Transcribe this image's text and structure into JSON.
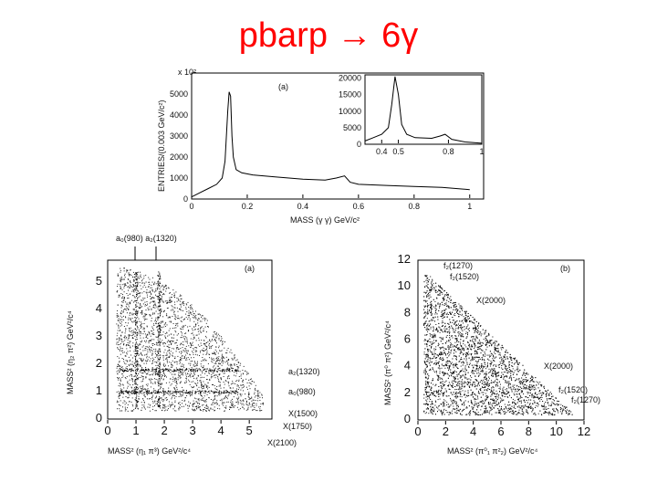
{
  "title": "pbarp → 6γ",
  "chart_data": [
    {
      "type": "line",
      "panel": "(a)",
      "ylabel": "ENTRIES/(0.003 GeV/c²)",
      "xlabel": "MASS (γ γ) GeV/c²",
      "y_multiplier": "x 10²",
      "xlim": [
        0,
        1.05
      ],
      "ylim": [
        0,
        6000
      ],
      "xticks": [
        "0",
        "0.2",
        "0.4",
        "0.6",
        "0.8",
        "1"
      ],
      "yticks": [
        "0",
        "1000",
        "2000",
        "3000",
        "4000",
        "5000"
      ],
      "x": [
        0.0,
        0.03,
        0.06,
        0.09,
        0.11,
        0.12,
        0.13,
        0.135,
        0.14,
        0.145,
        0.15,
        0.16,
        0.18,
        0.22,
        0.3,
        0.4,
        0.48,
        0.52,
        0.55,
        0.57,
        0.6,
        0.7,
        0.8,
        0.9,
        1.0
      ],
      "y": [
        100,
        300,
        500,
        700,
        1000,
        1800,
        4200,
        5100,
        4900,
        3000,
        2000,
        1400,
        1250,
        1150,
        1050,
        950,
        900,
        1000,
        1100,
        800,
        700,
        650,
        600,
        550,
        450
      ]
    },
    {
      "type": "line",
      "panel": "inset",
      "xlim": [
        0.3,
        1.0
      ],
      "ylim": [
        0,
        21000
      ],
      "xticks": [
        "0.4",
        "0.5",
        "0.8",
        "1"
      ],
      "yticks": [
        "0",
        "5000",
        "10000",
        "15000",
        "20000"
      ],
      "x": [
        0.3,
        0.35,
        0.4,
        0.44,
        0.46,
        0.48,
        0.5,
        0.52,
        0.55,
        0.6,
        0.7,
        0.75,
        0.78,
        0.82,
        0.9,
        1.0
      ],
      "y": [
        1000,
        2000,
        3000,
        5000,
        12000,
        20500,
        15000,
        6000,
        3000,
        2000,
        1800,
        2500,
        3000,
        1500,
        700,
        300
      ]
    },
    {
      "type": "scatter",
      "panel": "(a)",
      "xlabel": "MASS² (η₁ π³) GeV²/c⁴",
      "ylabel": "MASS² (η₂ π²) GeV²/c⁴",
      "xlim": [
        0,
        5.8
      ],
      "ylim": [
        0,
        5.8
      ],
      "xticks": [
        "0",
        "1",
        "2",
        "3",
        "4",
        "5"
      ],
      "yticks": [
        "0",
        "1",
        "2",
        "3",
        "4",
        "5"
      ],
      "annotations": [
        "a₀(980) a₂(1320)",
        "a₂(1320)",
        "a₀(980)",
        "X(1500)",
        "X(1750)",
        "X(2100)"
      ]
    },
    {
      "type": "scatter",
      "panel": "(b)",
      "xlabel": "MASS² (π⁰₁ π²₂) GeV²/c⁴",
      "ylabel": "MASS² (π⁰ π²) GeV²/c⁴",
      "xlim": [
        0,
        12
      ],
      "ylim": [
        0,
        12
      ],
      "xticks": [
        "0",
        "2",
        "4",
        "6",
        "8",
        "10",
        "12"
      ],
      "yticks": [
        "0",
        "2",
        "4",
        "6",
        "8",
        "10",
        "12"
      ],
      "annotations": [
        "f₂(1270)",
        "f₂(1520)",
        "X(2000)",
        "X(2000)",
        "f₂(1520)",
        "f₂(1270)"
      ]
    }
  ]
}
